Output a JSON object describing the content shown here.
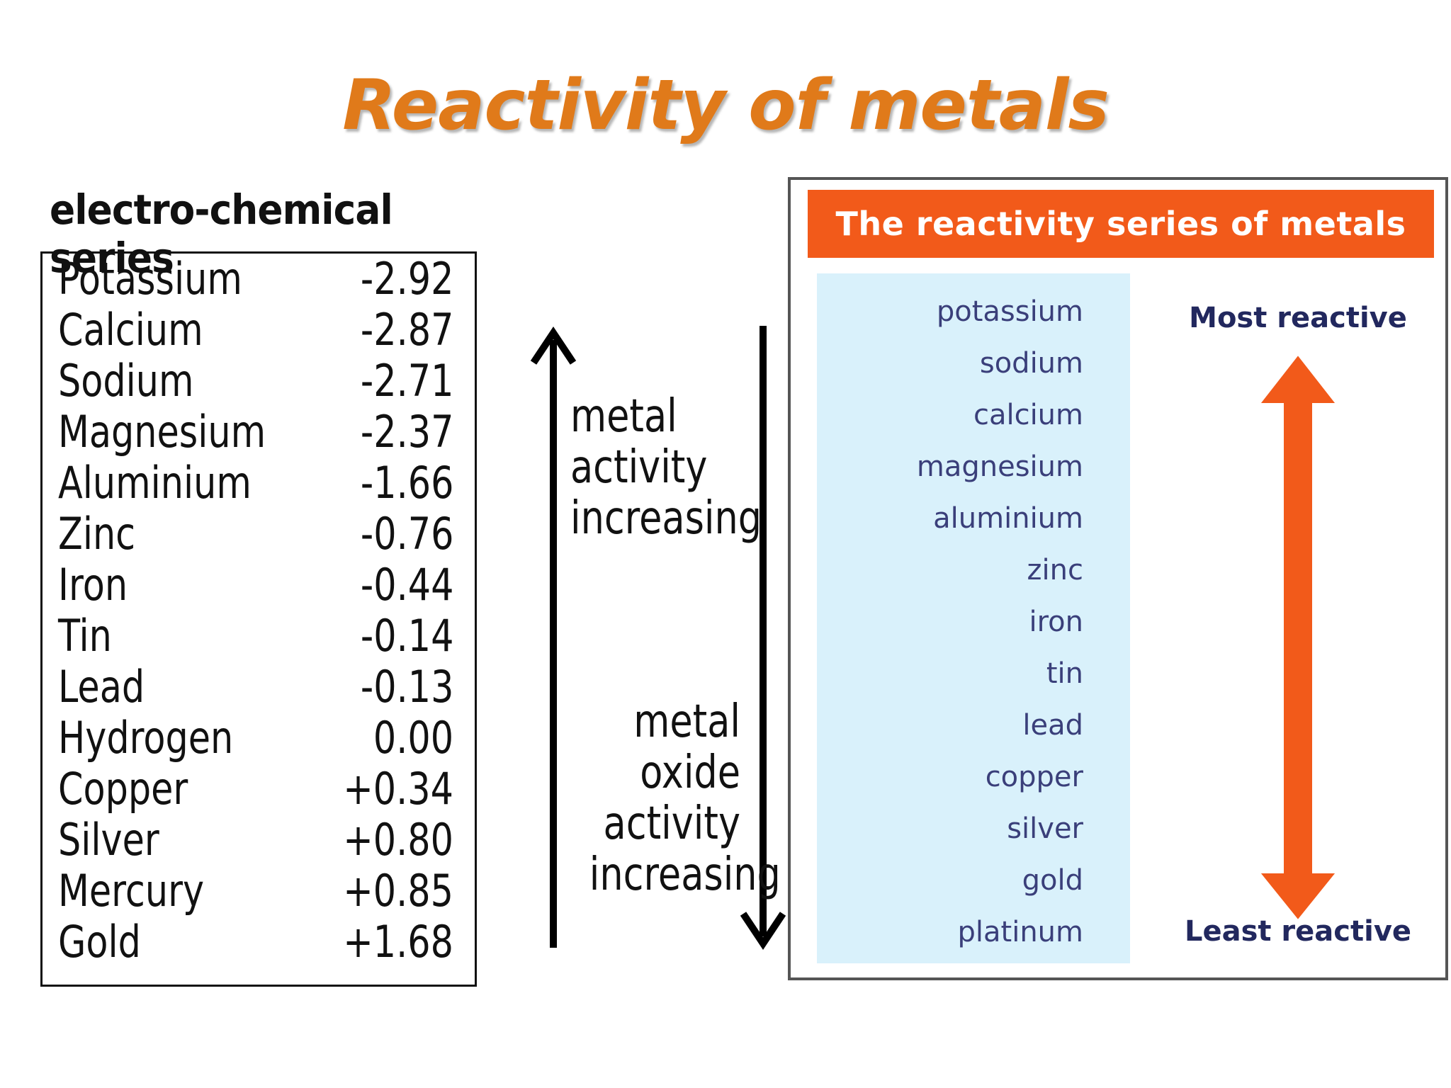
{
  "title": "Reactivity of metals",
  "electro_chemical_series": {
    "heading": "electro-chemical series",
    "rows": [
      {
        "metal": "Potassium",
        "potential": "-2.92"
      },
      {
        "metal": "Calcium",
        "potential": "-2.87"
      },
      {
        "metal": "Sodium",
        "potential": "-2.71"
      },
      {
        "metal": "Magnesium",
        "potential": "-2.37"
      },
      {
        "metal": "Aluminium",
        "potential": "-1.66"
      },
      {
        "metal": "Zinc",
        "potential": "-0.76"
      },
      {
        "metal": "Iron",
        "potential": "-0.44"
      },
      {
        "metal": "Tin",
        "potential": "-0.14"
      },
      {
        "metal": "Lead",
        "potential": "-0.13"
      },
      {
        "metal": "Hydrogen",
        "potential": "0.00"
      },
      {
        "metal": "Copper",
        "potential": "+0.34"
      },
      {
        "metal": "Silver",
        "potential": "+0.80"
      },
      {
        "metal": "Mercury",
        "potential": "+0.85"
      },
      {
        "metal": "Gold",
        "potential": "+1.68"
      }
    ]
  },
  "middle": {
    "up_label": [
      "metal",
      "activity",
      "increasing"
    ],
    "down_label": [
      "metal",
      "oxide",
      "activity",
      "increasing"
    ]
  },
  "reactivity_panel": {
    "banner": "The reactivity series of metals",
    "items": [
      "potassium",
      "sodium",
      "calcium",
      "magnesium",
      "aluminium",
      "zinc",
      "iron",
      "tin",
      "lead",
      "copper",
      "silver",
      "gold",
      "platinum"
    ],
    "most_label": "Most reactive",
    "least_label": "Least reactive",
    "accent_color": "#f25a1a",
    "list_background": "#d9f1fb"
  }
}
